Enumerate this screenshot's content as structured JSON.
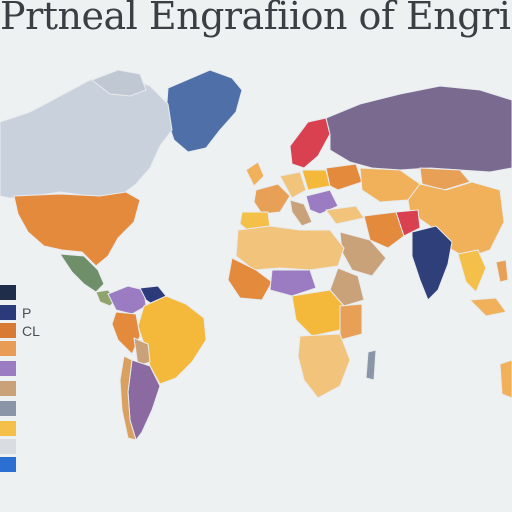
{
  "title": "Prtneal Engrafiion of Engrian Ecc",
  "colors": {
    "background": "#eef1f2",
    "ocean_text": "#3b3f44",
    "greenland": "#4e6fa8",
    "canada": "#c9d2dc",
    "usa": "#e38a3c",
    "russia": "#7a6a8f",
    "china": "#f0b15a",
    "africa": "#f2c47b",
    "brazil": "#f4b93a",
    "india": "#2f3f7a",
    "australia": "#f0b15a",
    "scandinavia": "#d94050"
  },
  "legend": [
    {
      "label": "",
      "color": "#1f2d4a"
    },
    {
      "label": "P",
      "color": "#2b3a7a"
    },
    {
      "label": "CL",
      "color": "#d97a34"
    },
    {
      "label": "",
      "color": "#e89c55"
    },
    {
      "label": "",
      "color": "#9b7bc2"
    },
    {
      "label": "",
      "color": "#c9a27a"
    },
    {
      "label": "",
      "color": "#8a96a8"
    },
    {
      "label": "",
      "color": "#f4c04a"
    },
    {
      "label": "",
      "color": "#d9dde2"
    },
    {
      "label": "",
      "color": "#2a6fd1"
    }
  ]
}
